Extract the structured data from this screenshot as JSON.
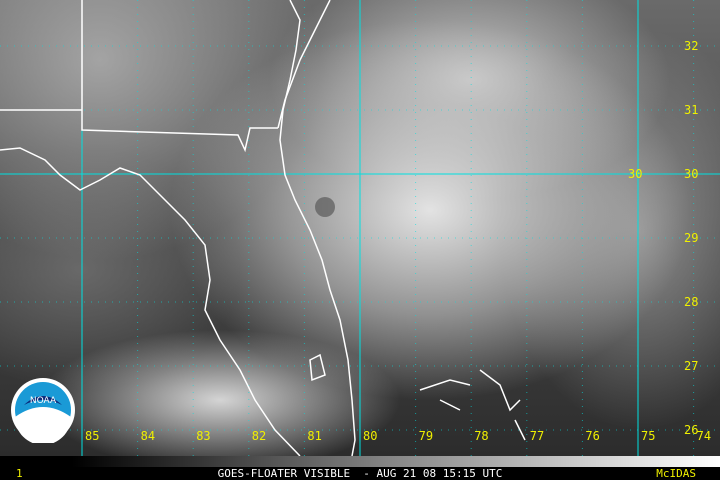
{
  "image": {
    "caption": "GOES-FLOATER VISIBLE  - AUG 21 08 15:15 UTC",
    "frame_number": "1",
    "software_label": "McIDAS",
    "logo_text": "NOAA",
    "grid_color": "#00e0e0",
    "label_color": "#f0f000",
    "longitude_labels": [
      "85",
      "84",
      "83",
      "82",
      "81",
      "80",
      "79",
      "78",
      "77",
      "76",
      "75",
      "74"
    ],
    "latitude_labels": [
      "32",
      "31",
      "30",
      "29",
      "28",
      "27",
      "26"
    ],
    "center_latitude_label": "30"
  }
}
